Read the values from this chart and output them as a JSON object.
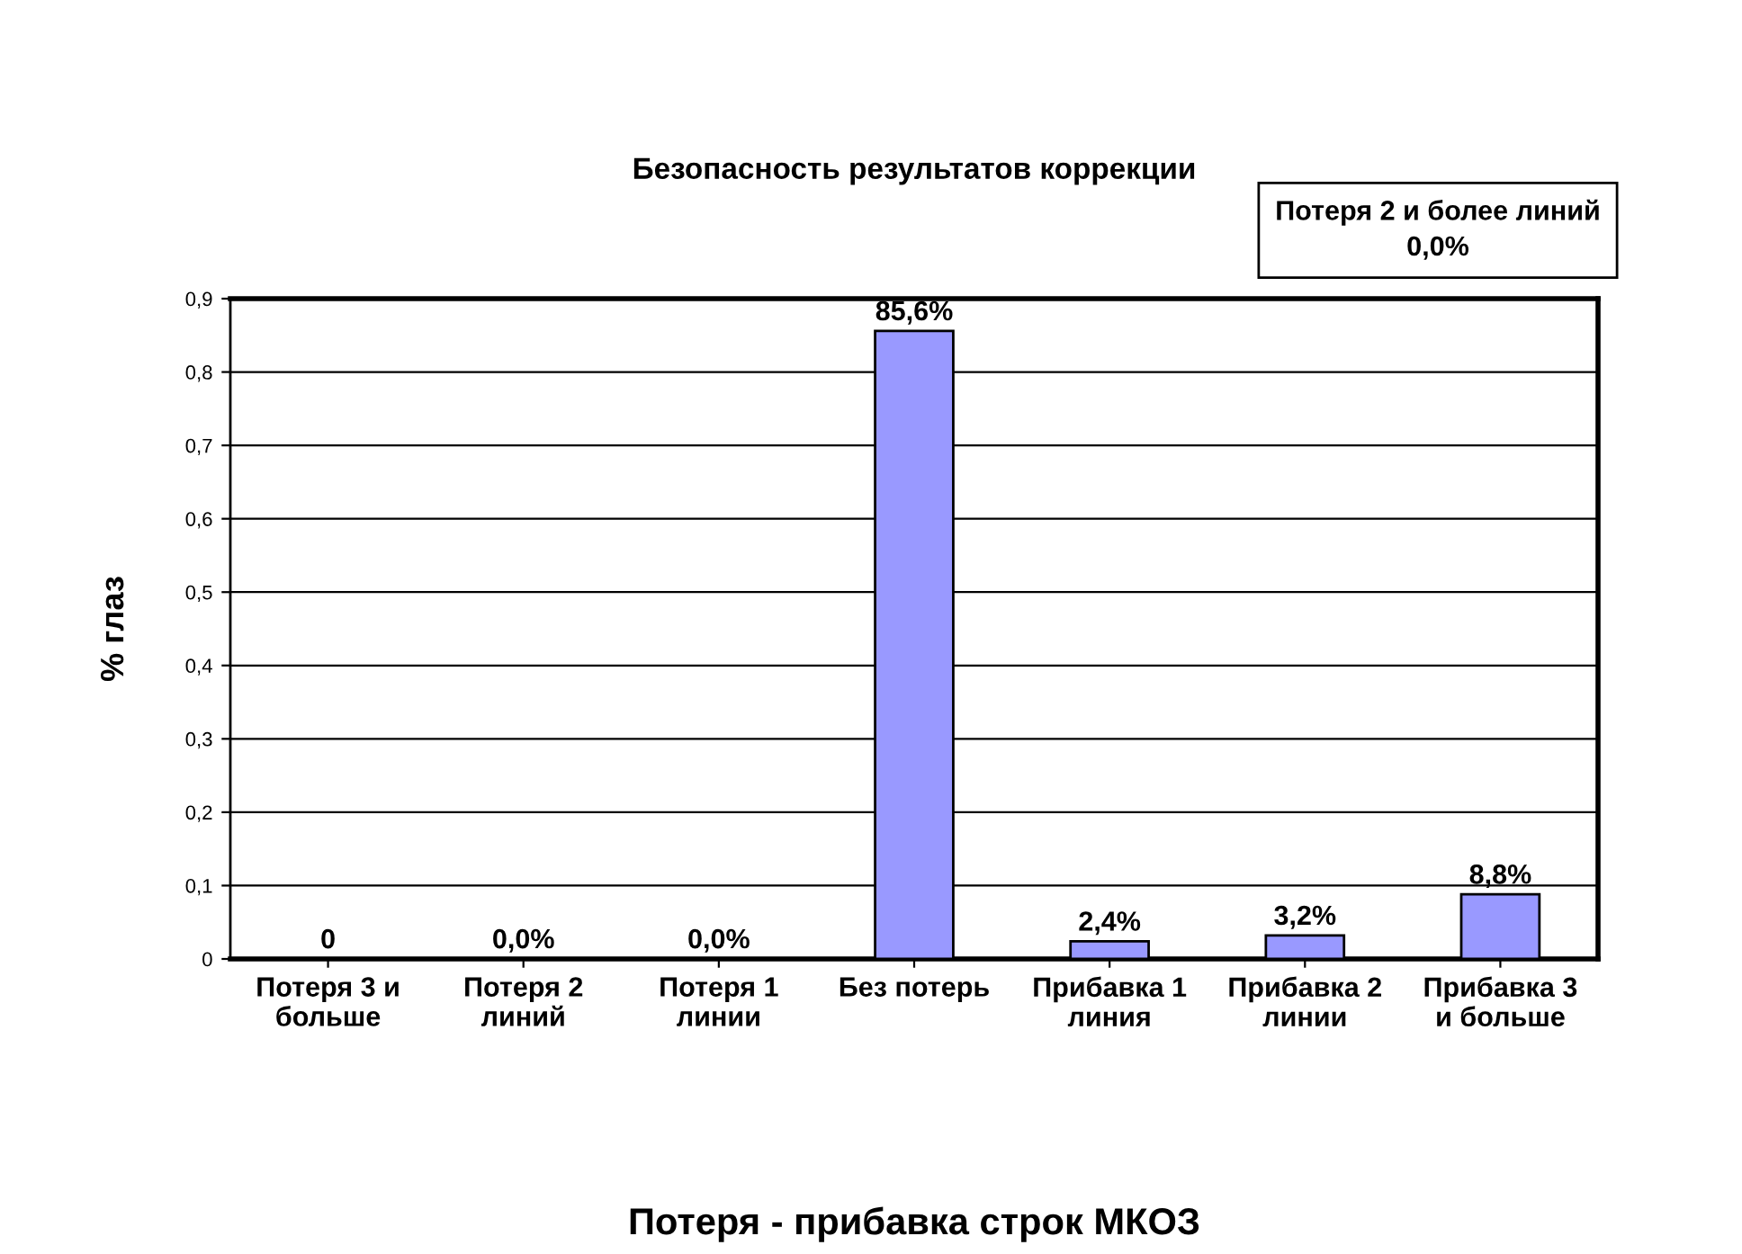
{
  "chart_data": {
    "type": "bar",
    "title": "Безопасность результатов коррекции",
    "xlabel": "Потеря - прибавка строк МКОЗ",
    "ylabel": "% глаз",
    "categories": [
      "Потеря 3 и\nбольше",
      "Потеря 2\nлиний",
      "Потеря 1\nлинии",
      "Без потерь",
      "Прибавка 1\nлиния",
      "Прибавка 2\nлинии",
      "Прибавка 3\nи больше"
    ],
    "values": [
      0,
      0,
      0,
      0.856,
      0.024,
      0.032,
      0.088
    ],
    "value_labels": [
      "0",
      "0,0%",
      "0,0%",
      "85,6%",
      "2,4%",
      "3,2%",
      "8,8%"
    ],
    "color": "#9999ff",
    "ylim": [
      0,
      0.9
    ],
    "yticks": [
      0,
      {
        "value": 0.1,
        "label": "0,1"
      },
      {
        "value": 0.2,
        "label": "0,2"
      },
      {
        "value": 0.3,
        "label": "0,3"
      },
      {
        "value": 0.4,
        "label": "0,4"
      },
      {
        "value": 0.5,
        "label": "0,5"
      },
      {
        "value": 0.6,
        "label": "0,6"
      },
      {
        "value": 0.7,
        "label": "0,7"
      },
      {
        "value": 0.8,
        "label": "0,8"
      },
      {
        "value": 0.9,
        "label": "0,9"
      }
    ],
    "grid": "y",
    "annotations": [
      "Потеря 2 и более линий\n0,0%"
    ]
  }
}
